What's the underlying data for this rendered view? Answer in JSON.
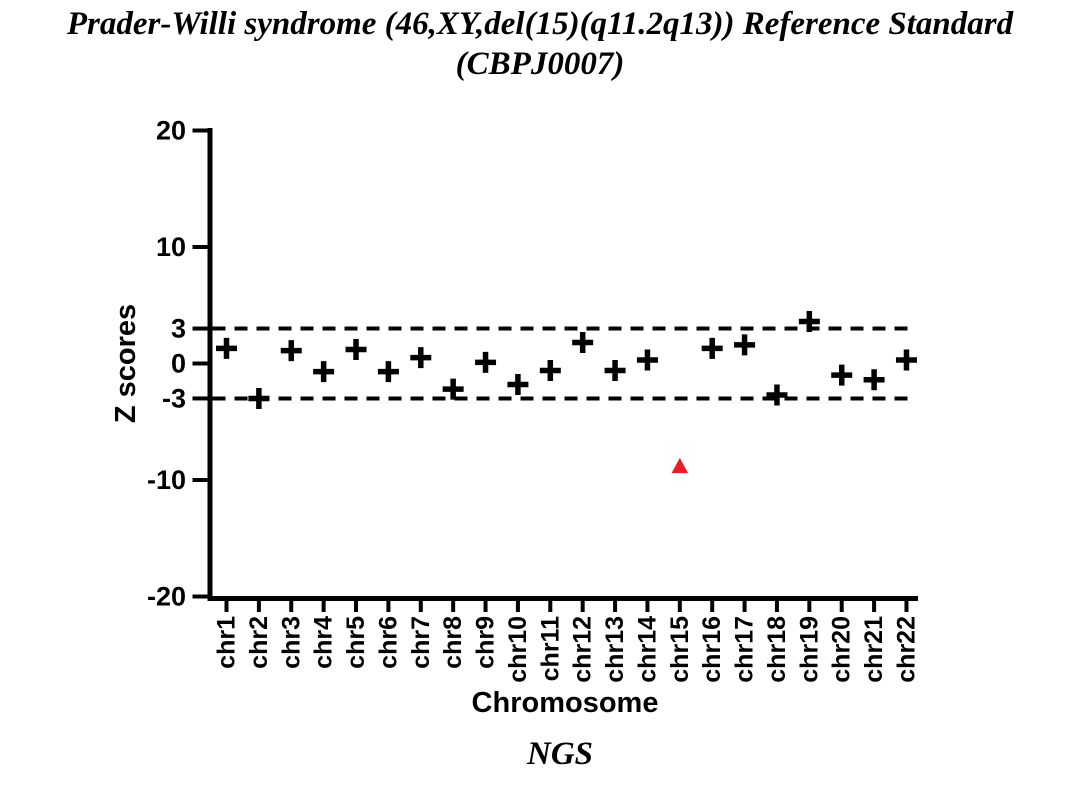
{
  "title": {
    "line1": "Prader-Willi syndrome (46,XY,del(15)(q11.2q13)) Reference Standard",
    "line2": "(CBPJ0007)"
  },
  "chart_data": {
    "type": "scatter",
    "title": "Prader-Willi syndrome (46,XY,del(15)(q11.2q13)) Reference Standard (CBPJ0007)",
    "xlabel": "Chromosome",
    "ylabel": "Z scores",
    "caption": "NGS",
    "ylim": [
      -20,
      20
    ],
    "yticks": [
      20,
      10,
      3,
      0,
      -3,
      -10,
      -20
    ],
    "reference_lines": [
      3,
      -3
    ],
    "grid": false,
    "legend": false,
    "marker_colors": {
      "plus": "#000000",
      "triangle": "#ED1C24"
    },
    "categories": [
      "chr1",
      "chr2",
      "chr3",
      "chr4",
      "chr5",
      "chr6",
      "chr7",
      "chr8",
      "chr9",
      "chr10",
      "chr11",
      "chr12",
      "chr13",
      "chr14",
      "chr15",
      "chr16",
      "chr17",
      "chr18",
      "chr19",
      "chr20",
      "chr21",
      "chr22"
    ],
    "points": [
      {
        "chr": "chr1",
        "z": 1.3,
        "marker": "plus"
      },
      {
        "chr": "chr2",
        "z": -3.0,
        "marker": "plus"
      },
      {
        "chr": "chr3",
        "z": 1.1,
        "marker": "plus"
      },
      {
        "chr": "chr4",
        "z": -0.7,
        "marker": "plus"
      },
      {
        "chr": "chr5",
        "z": 1.2,
        "marker": "plus"
      },
      {
        "chr": "chr6",
        "z": -0.7,
        "marker": "plus"
      },
      {
        "chr": "chr7",
        "z": 0.5,
        "marker": "plus"
      },
      {
        "chr": "chr8",
        "z": -2.2,
        "marker": "plus"
      },
      {
        "chr": "chr9",
        "z": 0.1,
        "marker": "plus"
      },
      {
        "chr": "chr10",
        "z": -1.8,
        "marker": "plus"
      },
      {
        "chr": "chr11",
        "z": -0.6,
        "marker": "plus"
      },
      {
        "chr": "chr12",
        "z": 1.8,
        "marker": "plus"
      },
      {
        "chr": "chr13",
        "z": -0.6,
        "marker": "plus"
      },
      {
        "chr": "chr14",
        "z": 0.3,
        "marker": "plus"
      },
      {
        "chr": "chr15",
        "z": -8.8,
        "marker": "triangle"
      },
      {
        "chr": "chr16",
        "z": 1.3,
        "marker": "plus"
      },
      {
        "chr": "chr17",
        "z": 1.6,
        "marker": "plus"
      },
      {
        "chr": "chr18",
        "z": -2.7,
        "marker": "plus"
      },
      {
        "chr": "chr19",
        "z": 3.6,
        "marker": "plus"
      },
      {
        "chr": "chr20",
        "z": -1.0,
        "marker": "plus"
      },
      {
        "chr": "chr21",
        "z": -1.4,
        "marker": "plus"
      },
      {
        "chr": "chr22",
        "z": 0.3,
        "marker": "plus"
      }
    ]
  }
}
